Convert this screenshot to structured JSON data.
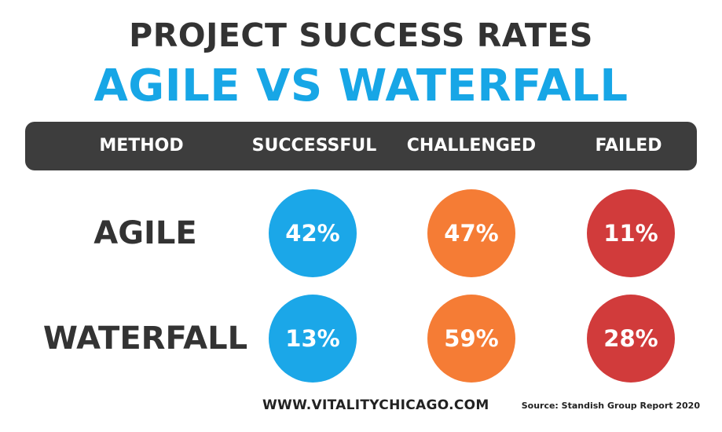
{
  "chart_data": {
    "type": "table",
    "title": "PROJECT SUCCESS RATES",
    "subtitle": "AGILE VS WATERFALL",
    "header_label": "METHOD",
    "columns": [
      "SUCCESSFUL",
      "CHALLENGED",
      "FAILED"
    ],
    "rows": [
      {
        "label": "AGILE",
        "values": [
          "42%",
          "47%",
          "11%"
        ]
      },
      {
        "label": "WATERFALL",
        "values": [
          "13%",
          "59%",
          "28%"
        ]
      }
    ],
    "numeric_values": [
      [
        42,
        47,
        11
      ],
      [
        13,
        59,
        28
      ]
    ],
    "colors": {
      "SUCCESSFUL": "#1ba7e8",
      "CHALLENGED": "#f57c35",
      "FAILED": "#d13b3b",
      "title": "#333333",
      "subtitle": "#17a6e6",
      "header_bar": "#3d3d3d"
    }
  },
  "footer": {
    "website": "WWW.VITALITYCHICAGO.COM",
    "source": "Source: Standish Group Report 2020"
  }
}
